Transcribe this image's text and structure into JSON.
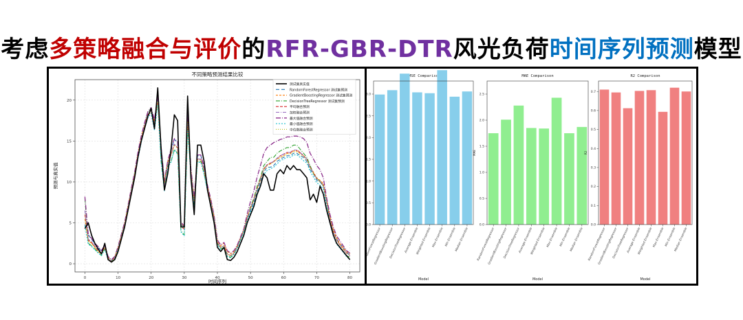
{
  "headline": {
    "parts": [
      {
        "text": "考虑",
        "color": "#000000"
      },
      {
        "text": "多策略融合与评价",
        "color": "#c00000"
      },
      {
        "text": "的",
        "color": "#000000"
      },
      {
        "text": "RFR-GBR-DTR",
        "color": "#7030a0"
      },
      {
        "text": "风光负荷",
        "color": "#000000"
      },
      {
        "text": "时间序列预测",
        "color": "#0070c0"
      },
      {
        "text": "模型",
        "color": "#000000"
      }
    ]
  },
  "chart_data": [
    {
      "type": "line",
      "title": "不同策略预测结果比较",
      "xlabel": "时间序列",
      "ylabel": "预测与真实值",
      "xlim": [
        -3,
        83
      ],
      "ylim": [
        -1,
        22.5
      ],
      "xticks": [
        0,
        10,
        20,
        30,
        40,
        50,
        60,
        70,
        80
      ],
      "yticks": [
        0,
        5,
        10,
        15,
        20
      ],
      "grid": true,
      "legend": "top-right",
      "series": [
        {
          "name": "测试集真实值",
          "color": "#000000",
          "dash": "",
          "width": 1.6,
          "values": [
            4.3,
            5,
            3.5,
            2.5,
            1.8,
            1.2,
            2.5,
            0.5,
            0.2,
            0.5,
            1.5,
            3,
            4.5,
            6.5,
            8.5,
            10.5,
            13,
            15,
            16.5,
            18,
            19,
            16.5,
            21.5,
            14,
            9,
            11,
            14,
            18.2,
            17.5,
            4.5,
            4.5,
            20.5,
            10.5,
            6,
            14.5,
            14.5,
            12.5,
            9,
            7,
            5,
            2,
            1.5,
            2,
            0.5,
            0.4,
            0.8,
            1.5,
            2.5,
            3.5,
            5,
            6,
            7,
            8.5,
            9.5,
            11,
            10.5,
            9,
            9,
            11,
            11.5,
            11,
            12,
            11.5,
            12,
            11.5,
            11.5,
            11,
            10.5,
            7.8,
            8.5,
            7.5,
            9.5,
            8.5,
            6.5,
            5,
            3.5,
            2.5,
            2,
            1.5,
            1,
            0.5
          ]
        },
        {
          "name": "RandomForestRegressor 测试集预测",
          "color": "#1f77b4",
          "dash": "5,3",
          "width": 1.1,
          "values": [
            4.8,
            3.5,
            3,
            2.4,
            2,
            1.5,
            2.2,
            0.8,
            0.4,
            0.8,
            1.8,
            3.2,
            4.8,
            6.8,
            8.8,
            10.8,
            13.2,
            15.2,
            16.8,
            18,
            18.8,
            17.2,
            19.8,
            14.2,
            9.8,
            12.2,
            13.8,
            15.2,
            14.8,
            4.8,
            4.5,
            18.5,
            11,
            7.5,
            13.2,
            13.2,
            11.8,
            9.2,
            7.5,
            5.5,
            2.5,
            2,
            2.2,
            1.2,
            1,
            1.3,
            2,
            3,
            4,
            5.5,
            6.5,
            7.5,
            8.8,
            10,
            11.2,
            11.8,
            11.8,
            12,
            12.5,
            12.8,
            13,
            13.2,
            13.2,
            13.5,
            13.5,
            13.2,
            13,
            12.5,
            11.5,
            11,
            10.2,
            10,
            9.5,
            7.5,
            5.5,
            4,
            3,
            2.5,
            2,
            1.5,
            1
          ]
        },
        {
          "name": "GradientBoostingRegressor 测试集预测",
          "color": "#ff7f0e",
          "dash": "3,2",
          "width": 1.1,
          "values": [
            5.5,
            2.8,
            2.5,
            2,
            1.5,
            1.2,
            2,
            0.8,
            0.3,
            0.8,
            2,
            3.5,
            5,
            7,
            9,
            11,
            13.5,
            15.5,
            17,
            18.2,
            18.5,
            17.5,
            19.5,
            13.8,
            10,
            12.5,
            13.5,
            14.5,
            14.2,
            5,
            4.5,
            17.5,
            11.5,
            8,
            12.8,
            12.8,
            11.5,
            9.5,
            7.8,
            5.8,
            2.8,
            2.2,
            2.5,
            1.5,
            1.2,
            1.5,
            2.2,
            3.2,
            4.2,
            5.8,
            6.8,
            8,
            9.2,
            10.5,
            11.5,
            12,
            12.2,
            12.5,
            12.8,
            13,
            13.2,
            13.5,
            13.5,
            13.8,
            13.8,
            13.5,
            13.2,
            12.8,
            11.8,
            11.2,
            10.5,
            10.2,
            9.8,
            7.8,
            5.8,
            4.2,
            3.2,
            2.5,
            2,
            1.5,
            1.2
          ]
        },
        {
          "name": "DecisionTreeRegressor 测试集预测",
          "color": "#2ca02c",
          "dash": "6,2,1,2",
          "width": 1.1,
          "values": [
            8,
            2.5,
            2.2,
            1.8,
            1.4,
            1,
            1.8,
            0.6,
            0.3,
            0.7,
            1.8,
            3.5,
            5,
            6.8,
            9,
            11,
            13,
            15,
            17,
            18.5,
            19,
            16.5,
            20.5,
            12.5,
            9,
            12,
            12.5,
            14,
            13.5,
            4,
            3.5,
            16.5,
            11,
            7,
            12.5,
            12.5,
            11,
            9,
            7.5,
            5.5,
            2.5,
            1.8,
            2,
            1,
            0.8,
            1.2,
            2,
            3,
            4,
            5.5,
            7,
            8,
            9.5,
            10.5,
            12,
            12.5,
            13,
            13,
            13.5,
            13.8,
            14,
            14.2,
            14.2,
            14.5,
            14.5,
            14,
            13.5,
            13,
            12,
            11,
            10.5,
            10,
            9.5,
            7.5,
            5,
            3.5,
            2.5,
            2,
            1.5,
            1,
            0.8
          ]
        },
        {
          "name": "平均融合预测",
          "color": "#d62728",
          "dash": "4,2",
          "width": 1.1,
          "values": [
            6,
            2.9,
            2.6,
            2.1,
            1.6,
            1.2,
            2,
            0.7,
            0.3,
            0.8,
            1.9,
            3.4,
            4.9,
            6.9,
            8.9,
            10.9,
            13.2,
            15.2,
            16.9,
            18.2,
            18.8,
            17,
            20,
            13.5,
            9.6,
            12.2,
            13.3,
            14.6,
            14.2,
            4.6,
            4.2,
            17.5,
            11.2,
            7.5,
            12.8,
            12.8,
            11.4,
            9.2,
            7.6,
            5.6,
            2.6,
            2,
            2.2,
            1.2,
            1,
            1.3,
            2.1,
            3.1,
            4.1,
            5.6,
            6.8,
            7.8,
            9.2,
            10.3,
            11.6,
            12.1,
            12.3,
            12.5,
            12.9,
            13.2,
            13.4,
            13.6,
            13.6,
            13.9,
            13.9,
            13.6,
            13.2,
            12.8,
            11.8,
            11.1,
            10.4,
            10.1,
            9.6,
            7.6,
            5.4,
            3.9,
            2.9,
            2.3,
            1.8,
            1.3,
            1
          ]
        },
        {
          "name": "加权融合预测",
          "color": "#9467bd",
          "dash": "5,2,1,2",
          "width": 1.1,
          "values": [
            6.5,
            3,
            2.7,
            2.2,
            1.7,
            1.3,
            2.1,
            0.7,
            0.3,
            0.8,
            1.9,
            3.4,
            4.9,
            6.9,
            8.9,
            10.9,
            13.2,
            15.2,
            16.9,
            18.2,
            18.8,
            17,
            20.2,
            13.5,
            9.6,
            12.2,
            13.3,
            14.6,
            14.2,
            4.6,
            4.2,
            17.8,
            11.2,
            7.5,
            12.8,
            12.8,
            11.4,
            9.2,
            7.6,
            5.6,
            2.6,
            2,
            2.2,
            1.2,
            1,
            1.3,
            2.1,
            3.1,
            4.1,
            5.6,
            6.8,
            7.8,
            9.2,
            10.3,
            11.6,
            12.1,
            12.3,
            12.5,
            12.9,
            13.2,
            13.4,
            13.6,
            13.6,
            13.9,
            13.9,
            13.6,
            13.2,
            12.8,
            11.8,
            11.1,
            10.4,
            10.1,
            9.6,
            7.6,
            5.4,
            3.9,
            2.9,
            2.3,
            1.8,
            1.3,
            1
          ]
        },
        {
          "name": "最大值融合预测",
          "color": "#8c2d8c",
          "dash": "7,2,1,2",
          "width": 1.3,
          "values": [
            8.2,
            3.6,
            3.1,
            2.5,
            2.1,
            1.6,
            2.3,
            0.9,
            0.5,
            0.9,
            2.1,
            3.6,
            5.1,
            7.1,
            9.2,
            11.2,
            13.6,
            15.6,
            17.2,
            18.6,
            19.1,
            17.6,
            20.6,
            14.3,
            10.1,
            12.6,
            14,
            15.3,
            14.9,
            5.1,
            4.6,
            18.6,
            11.6,
            8.1,
            13.3,
            13.3,
            11.9,
            9.6,
            7.9,
            5.9,
            2.9,
            2.3,
            2.6,
            1.6,
            1.3,
            1.6,
            2.3,
            3.3,
            4.3,
            6.1,
            7.6,
            8.9,
            10.6,
            12,
            13.5,
            14.2,
            14.5,
            14.8,
            15,
            15.2,
            15.3,
            15.5,
            15.5,
            15.6,
            15.6,
            15.5,
            15.3,
            14.8,
            13.5,
            12.8,
            12,
            11.5,
            10.5,
            8,
            6,
            4.5,
            3.4,
            2.8,
            2.2,
            1.6,
            1.3
          ]
        },
        {
          "name": "最小值融合预测",
          "color": "#17becf",
          "dash": "2,2",
          "width": 1.1,
          "values": [
            4.6,
            2.4,
            2.1,
            1.7,
            1.3,
            1,
            1.7,
            0.5,
            0.2,
            0.6,
            1.7,
            3.1,
            4.6,
            6.6,
            8.6,
            10.6,
            12.8,
            14.8,
            16.5,
            17.8,
            18.4,
            16.3,
            19.4,
            12.4,
            8.9,
            11.8,
            12.4,
            13.9,
            13.4,
            3.9,
            3.4,
            16.4,
            10.9,
            6.9,
            12.4,
            12.4,
            10.9,
            8.9,
            7.3,
            5.3,
            2.3,
            1.7,
            1.9,
            0.9,
            0.7,
            1.1,
            1.9,
            2.9,
            3.9,
            5.3,
            6.3,
            7.3,
            8.6,
            9.6,
            10.9,
            11.4,
            11.6,
            11.8,
            12.2,
            12.6,
            12.8,
            13,
            13,
            13.3,
            13.3,
            13,
            12.6,
            12.3,
            11.3,
            10.6,
            9.9,
            9.6,
            9.1,
            7.1,
            4.9,
            3.4,
            2.4,
            1.9,
            1.4,
            0.9,
            0.5
          ]
        },
        {
          "name": "中位数融合预测",
          "color": "#bcbd22",
          "dash": "1,2",
          "width": 1.2,
          "values": [
            5.5,
            2.8,
            2.5,
            2,
            1.5,
            1.2,
            2,
            0.7,
            0.3,
            0.8,
            1.9,
            3.4,
            4.9,
            6.9,
            8.9,
            10.9,
            13.2,
            15.2,
            16.9,
            18.1,
            18.7,
            17.1,
            19.8,
            13.7,
            9.8,
            12.3,
            13.4,
            14.5,
            14.1,
            4.7,
            4.3,
            17.4,
            11.1,
            7.6,
            12.7,
            12.7,
            11.4,
            9.3,
            7.6,
            5.6,
            2.6,
            2,
            2.2,
            1.2,
            1,
            1.3,
            2.1,
            3.1,
            4.1,
            5.6,
            6.7,
            7.7,
            9.1,
            10.2,
            11.5,
            12,
            12.2,
            12.4,
            12.8,
            13,
            13.2,
            13.4,
            13.4,
            13.7,
            13.7,
            13.4,
            13.1,
            12.7,
            11.7,
            11.1,
            10.4,
            10.1,
            9.6,
            7.6,
            5.5,
            4,
            2.9,
            2.3,
            1.8,
            1.3,
            1
          ]
        }
      ]
    },
    {
      "type": "bar",
      "title": "RMSE Comparison",
      "xlabel": "Model",
      "ylabel": "RMSE",
      "color": "#87ceeb",
      "ylim": [
        0,
        3.3
      ],
      "yticks": [
        0.0,
        0.5,
        1.0,
        1.5,
        2.0,
        2.5,
        3.0
      ],
      "categories": [
        "RandomForestRegressor",
        "GradientBoostingRegressor",
        "DecisionTreeRegressor",
        "Average Ensemble",
        "Weighted Ensemble",
        "Max Ensemble",
        "Min Ensemble",
        "Median Ensemble"
      ],
      "values": [
        2.99,
        3.09,
        3.47,
        3.04,
        3.02,
        3.55,
        2.94,
        3.06
      ]
    },
    {
      "type": "bar",
      "title": "MAE Comparison",
      "xlabel": "Model",
      "ylabel": "MAE",
      "color": "#90ee90",
      "ylim": [
        0,
        2.75
      ],
      "yticks": [
        0.0,
        0.5,
        1.0,
        1.5,
        2.0,
        2.5
      ],
      "categories": [
        "RandomForestRegressor",
        "GradientBoostingRegressor",
        "DecisionTreeRegressor",
        "Average Ensemble",
        "Weighted Ensemble",
        "Max Ensemble",
        "Min Ensemble",
        "Median Ensemble"
      ],
      "values": [
        1.75,
        2.01,
        2.28,
        1.85,
        1.84,
        2.43,
        1.75,
        1.87
      ]
    },
    {
      "type": "bar",
      "title": "R2 Comparison",
      "xlabel": "Model",
      "ylabel": "R2",
      "color": "#f08080",
      "ylim": [
        0,
        0.755
      ],
      "yticks": [
        0.0,
        0.1,
        0.2,
        0.3,
        0.4,
        0.5,
        0.6,
        0.7
      ],
      "categories": [
        "RandomForestRegressor",
        "GradientBoostingRegressor",
        "DecisionTreeRegressor",
        "Average Ensemble",
        "Weighted Ensemble",
        "Max Ensemble",
        "Min Ensemble",
        "Median Ensemble"
      ],
      "values": [
        0.71,
        0.695,
        0.612,
        0.703,
        0.707,
        0.593,
        0.72,
        0.7
      ]
    }
  ]
}
